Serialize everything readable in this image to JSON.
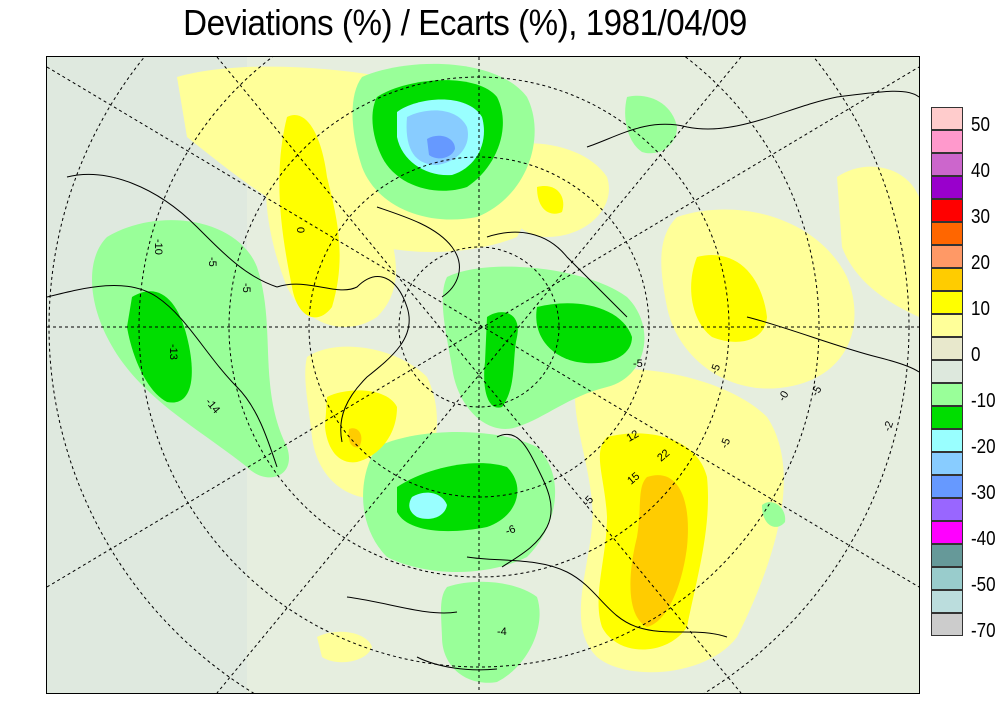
{
  "title": "Deviations (%) / Ecarts (%), 1981/04/09",
  "legend": {
    "swatches": [
      {
        "color": "#ffcccc"
      },
      {
        "color": "#ff99cc"
      },
      {
        "color": "#cc66cc"
      },
      {
        "color": "#9900cc"
      },
      {
        "color": "#ff0000"
      },
      {
        "color": "#ff6600"
      },
      {
        "color": "#ff9966"
      },
      {
        "color": "#ffcc00"
      },
      {
        "color": "#ffff00"
      },
      {
        "color": "#ffff99"
      },
      {
        "color": "#e8e8cc"
      },
      {
        "color": "#dde8dd"
      },
      {
        "color": "#99ff99"
      },
      {
        "color": "#00dd00"
      },
      {
        "color": "#99ffff"
      },
      {
        "color": "#88ccff"
      },
      {
        "color": "#6699ff"
      },
      {
        "color": "#9966ff"
      },
      {
        "color": "#ff00ff"
      },
      {
        "color": "#669999"
      },
      {
        "color": "#99cccc"
      },
      {
        "color": "#bbdddd"
      },
      {
        "color": "#cccccc"
      }
    ],
    "labels": [
      "50",
      "40",
      "30",
      "20",
      "10",
      "0",
      "-10",
      "-20",
      "-30",
      "-40",
      "-50",
      "-70"
    ]
  },
  "contour_labels": [
    "-10",
    "-5",
    "0",
    "-5",
    "-13",
    "-14",
    "-5",
    "-5",
    "12",
    "15",
    "22",
    "-5",
    "-2",
    "-5",
    "-0",
    "-5",
    "-6",
    "-4"
  ],
  "colors": {
    "background_zero": "#e6eedf",
    "positive_light": "#ffff99",
    "positive_mid": "#ffff00",
    "positive_strong": "#ffcc00",
    "negative_light": "#99ff99",
    "negative_mid": "#00dd00",
    "negative_strong": "#99ffff",
    "negative_stronger": "#88ccff",
    "negative_strongest": "#6699ff"
  }
}
